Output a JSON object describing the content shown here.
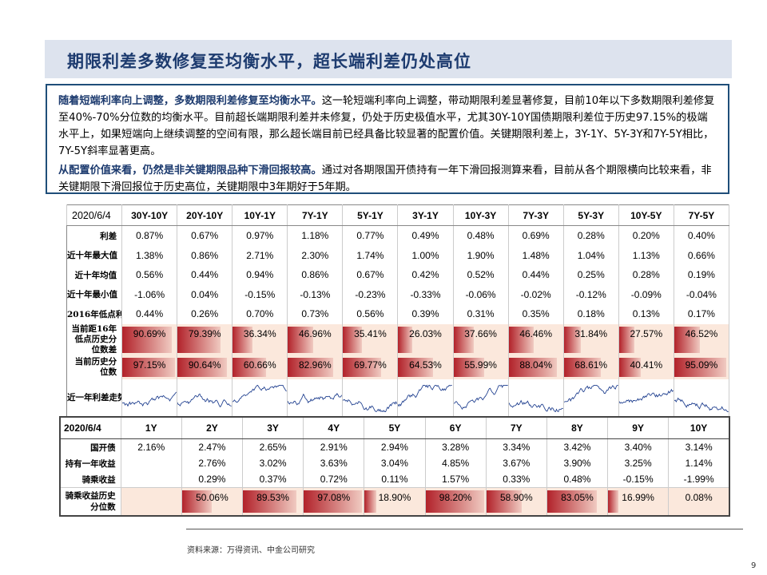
{
  "title": "期限利差多数修复至均衡水平，超长端利差仍处高位",
  "note": {
    "p1_bold": "随着短端利率向上调整，多数期限利差修复至均衡水平。",
    "p1_text": "这一轮短端利率向上调整，带动期限利差显著修复，目前10年以下多数期限利差修复至40%-70%分位数的均衡水平。目前超长端期限利差并未修复，仍处于历史极值水平，尤其30Y-10Y国债期限利差位于历史97.15%的极端水平上，如果短端向上继续调整的空间有限，那么超长端目前已经具备比较显著的配置价值。关键期限利差上，3Y-1Y、5Y-3Y和7Y-5Y相比，7Y-5Y斜率显著更高。",
    "p2_bold": "从配置价值来看，仍然是非关键期限品种下滑回报较高。",
    "p2_text": "通过对各期限国开债持有一年下滑回报测算来看，目前从各个期限横向比较来看，非关键期限下滑回报位于历史高位，关键期限中3年期好于5年期。"
  },
  "spread_table": {
    "date": "2020/6/4",
    "columns": [
      "30Y-10Y",
      "20Y-10Y",
      "10Y-1Y",
      "7Y-1Y",
      "5Y-1Y",
      "3Y-1Y",
      "10Y-3Y",
      "7Y-3Y",
      "5Y-3Y",
      "10Y-5Y",
      "7Y-5Y"
    ],
    "rows": [
      {
        "label": "利差",
        "values": [
          "0.87%",
          "0.67%",
          "0.97%",
          "1.18%",
          "0.77%",
          "0.49%",
          "0.48%",
          "0.69%",
          "0.28%",
          "0.20%",
          "0.40%"
        ]
      },
      {
        "label": "近十年最大值",
        "values": [
          "1.38%",
          "0.86%",
          "2.71%",
          "2.30%",
          "1.74%",
          "1.00%",
          "1.90%",
          "1.48%",
          "1.04%",
          "1.13%",
          "0.66%"
        ]
      },
      {
        "label": "近十年均值",
        "values": [
          "0.56%",
          "0.44%",
          "0.94%",
          "0.86%",
          "0.67%",
          "0.42%",
          "0.52%",
          "0.44%",
          "0.25%",
          "0.28%",
          "0.19%"
        ]
      },
      {
        "label": "近十年最小值",
        "values": [
          "-1.06%",
          "0.04%",
          "-0.15%",
          "-0.13%",
          "-0.23%",
          "-0.33%",
          "-0.06%",
          "-0.02%",
          "-0.12%",
          "-0.09%",
          "-0.04%"
        ]
      },
      {
        "label": "2016年低点利差",
        "values": [
          "0.44%",
          "0.26%",
          "0.70%",
          "0.73%",
          "0.56%",
          "0.39%",
          "0.31%",
          "0.35%",
          "0.18%",
          "0.13%",
          "0.17%"
        ]
      }
    ],
    "pct_rows": [
      {
        "label": "当前距16年低点历史分位数差",
        "values": [
          90.69,
          79.39,
          36.34,
          46.96,
          35.41,
          26.03,
          37.66,
          46.46,
          31.84,
          27.57,
          46.52
        ],
        "texts": [
          "90.69%",
          "79.39%",
          "36.34%",
          "46.96%",
          "35.41%",
          "26.03%",
          "37.66%",
          "46.46%",
          "31.84%",
          "27.57%",
          "46.52%"
        ]
      },
      {
        "label": "当前历史分位数",
        "values": [
          97.15,
          90.64,
          60.66,
          82.96,
          69.77,
          64.53,
          55.99,
          88.04,
          68.61,
          40.41,
          95.09
        ],
        "texts": [
          "97.15%",
          "90.64%",
          "60.66%",
          "82.96%",
          "69.77%",
          "64.53%",
          "55.99%",
          "88.04%",
          "68.61%",
          "40.41%",
          "95.09%"
        ]
      }
    ],
    "spark_label": "近一年利差走势"
  },
  "yield_table": {
    "date": "2020/6/4",
    "columns": [
      "1Y",
      "2Y",
      "3Y",
      "4Y",
      "5Y",
      "6Y",
      "7Y",
      "8Y",
      "9Y",
      "10Y"
    ],
    "rows": [
      {
        "label": "国开债",
        "values": [
          "2.16%",
          "2.47%",
          "2.65%",
          "2.91%",
          "2.94%",
          "3.28%",
          "3.34%",
          "3.42%",
          "3.40%",
          "3.14%"
        ]
      },
      {
        "label": "持有一年收益",
        "values": [
          "",
          "2.76%",
          "3.02%",
          "3.63%",
          "3.04%",
          "4.85%",
          "3.67%",
          "3.90%",
          "3.25%",
          "1.14%"
        ]
      },
      {
        "label": "骑乘收益",
        "values": [
          "",
          "0.29%",
          "0.37%",
          "0.72%",
          "0.11%",
          "1.57%",
          "0.33%",
          "0.48%",
          "-0.15%",
          "-1.99%"
        ]
      }
    ],
    "pct_row": {
      "label": "骑乘收益历史分位数",
      "values": [
        null,
        50.06,
        89.53,
        97.08,
        18.9,
        98.2,
        58.9,
        83.05,
        16.99,
        0.08
      ],
      "texts": [
        "",
        "50.06%",
        "89.53%",
        "97.08%",
        "18.90%",
        "98.20%",
        "58.90%",
        "83.05%",
        "16.99%",
        "0.08%"
      ]
    }
  },
  "colors": {
    "bar": "#b2222a",
    "title": "#1d3b6f",
    "accent_bg": "#fbe8dc"
  },
  "source": "资料来源：万得资讯、中金公司研究",
  "page_number": "9"
}
